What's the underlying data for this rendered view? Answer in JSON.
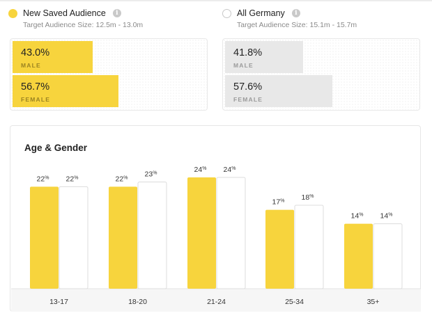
{
  "audiences": [
    {
      "name": "New Saved Audience",
      "size": "Target Audience Size: 12.5m - 13.0m",
      "color": "#f7d43d",
      "selected": true,
      "gender": [
        {
          "percent_label": "43.0%",
          "label": "MALE",
          "value": 43.0
        },
        {
          "percent_label": "56.7%",
          "label": "FEMALE",
          "value": 56.7
        }
      ]
    },
    {
      "name": "All Germany",
      "size": "Target Audience Size: 15.1m - 15.7m",
      "color": "#e8e8e8",
      "selected": false,
      "gender": [
        {
          "percent_label": "41.8%",
          "label": "MALE",
          "value": 41.8
        },
        {
          "percent_label": "57.6%",
          "label": "FEMALE",
          "value": 57.6
        }
      ]
    }
  ],
  "info_icon_glyph": "i",
  "chart_data": {
    "type": "bar",
    "title": "Age & Gender",
    "categories": [
      "13-17",
      "18-20",
      "21-24",
      "25-34",
      "35+"
    ],
    "series": [
      {
        "name": "New Saved Audience",
        "values": [
          22,
          22,
          24,
          17,
          14
        ],
        "labels": [
          "22",
          "22",
          "24",
          "17",
          "14"
        ],
        "color": "#f7d43d"
      },
      {
        "name": "All Germany",
        "values": [
          22,
          23,
          24,
          18,
          14
        ],
        "labels": [
          "22",
          "23",
          "24",
          "18",
          "14"
        ],
        "color": "#ffffff"
      }
    ],
    "unit": "%",
    "ylim": [
      0,
      28
    ],
    "xlabel": "",
    "ylabel": "",
    "grid": false
  }
}
